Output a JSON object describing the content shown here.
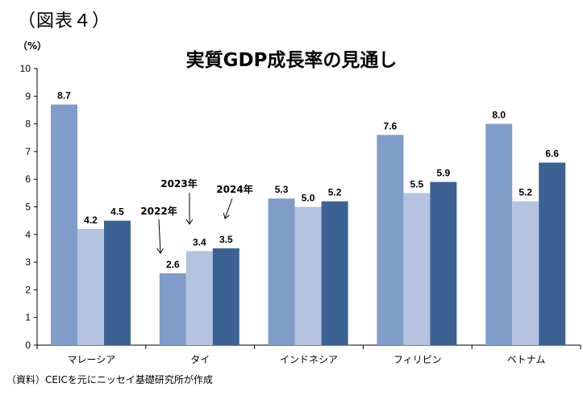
{
  "figure_label": "（図表４）",
  "unit": "（%）",
  "source": "（資料）CEICを元にニッセイ基礎研究所が作成",
  "colors": {
    "2022": "#7f9dc8",
    "2023": "#b5c3e0",
    "2024": "#3b6293"
  },
  "annotations": [
    {
      "text": "2022年"
    },
    {
      "text": "2023年"
    },
    {
      "text": "2024年"
    }
  ],
  "chart_data": {
    "type": "bar",
    "title": "実質GDP成長率の見通し",
    "categories": [
      "マレーシア",
      "タイ",
      "インドネシア",
      "フィリピン",
      "ベトナム"
    ],
    "series": [
      {
        "name": "2022年",
        "values": [
          8.7,
          2.6,
          5.3,
          7.6,
          8.0
        ],
        "labels": [
          "8.7",
          "2.6",
          "5.3",
          "7.6",
          "8.0"
        ]
      },
      {
        "name": "2023年",
        "values": [
          4.2,
          3.4,
          5.0,
          5.5,
          5.2
        ],
        "labels": [
          "4.2",
          "3.4",
          "5.0",
          "5.5",
          "5.2"
        ]
      },
      {
        "name": "2024年",
        "values": [
          4.5,
          3.5,
          5.2,
          5.9,
          6.6
        ],
        "labels": [
          "4.5",
          "3.5",
          "5.2",
          "5.9",
          "6.6"
        ]
      }
    ],
    "ylim": [
      0,
      10
    ],
    "yticks": [
      "0",
      "1",
      "2",
      "3",
      "4",
      "5",
      "6",
      "7",
      "8",
      "9",
      "10"
    ],
    "grid": false,
    "legend": "annotated arrows above タイ"
  }
}
